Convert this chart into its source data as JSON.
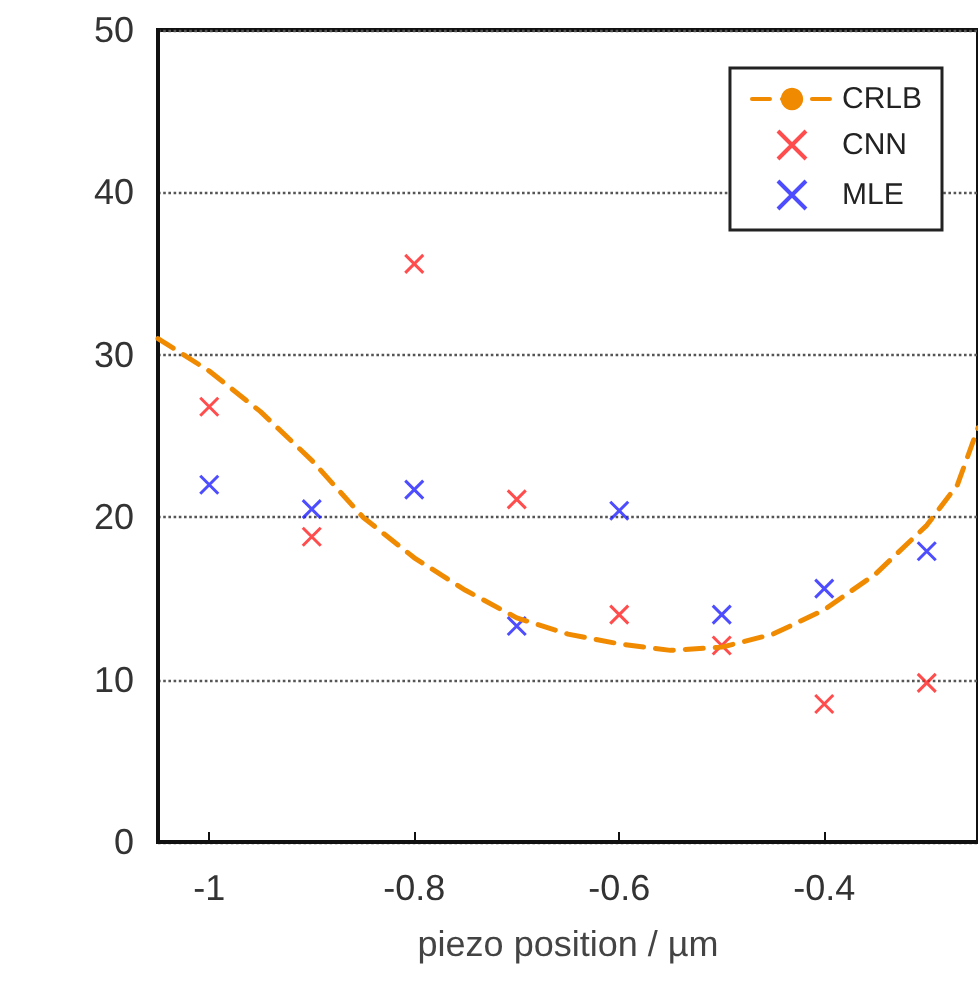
{
  "chart_data": {
    "type": "scatter",
    "xlabel": "piezo position / µm",
    "xlim": [
      -1.05,
      -0.25
    ],
    "xticks": [
      -1,
      -0.8,
      -0.6,
      -0.4
    ],
    "ylim": [
      0,
      50
    ],
    "yticks": [
      0,
      10,
      20,
      30,
      40,
      50
    ],
    "grid": "y",
    "legend": "top right",
    "marker": "cross",
    "series": [
      {
        "name": "CRLB",
        "type": "line",
        "color": "#f08a00",
        "line_style": "dashed",
        "marker": "none",
        "x": [
          -1.05,
          -1.0,
          -0.95,
          -0.9,
          -0.85,
          -0.8,
          -0.75,
          -0.7,
          -0.65,
          -0.6,
          -0.55,
          -0.5,
          -0.45,
          -0.4,
          -0.35,
          -0.3,
          -0.27,
          -0.25
        ],
        "values": [
          31,
          29,
          26.5,
          23.5,
          20,
          17.5,
          15.5,
          13.8,
          12.8,
          12.2,
          11.8,
          12,
          12.8,
          14.3,
          16.5,
          19.5,
          22,
          25.5
        ]
      },
      {
        "name": "CNN",
        "color": "#ff2020",
        "x": [
          -1,
          -0.9,
          -0.8,
          -0.7,
          -0.6,
          -0.5,
          -0.4,
          -0.3
        ],
        "values": [
          26.8,
          18.8,
          35.6,
          21.1,
          14,
          12.1,
          8.5,
          9.8
        ]
      },
      {
        "name": "MLE",
        "color": "#2020ff",
        "x": [
          -1,
          -0.9,
          -0.8,
          -0.7,
          -0.6,
          -0.5,
          -0.4,
          -0.3
        ],
        "values": [
          22,
          20.5,
          21.7,
          13.3,
          20.4,
          14,
          15.6,
          17.9
        ]
      }
    ]
  }
}
